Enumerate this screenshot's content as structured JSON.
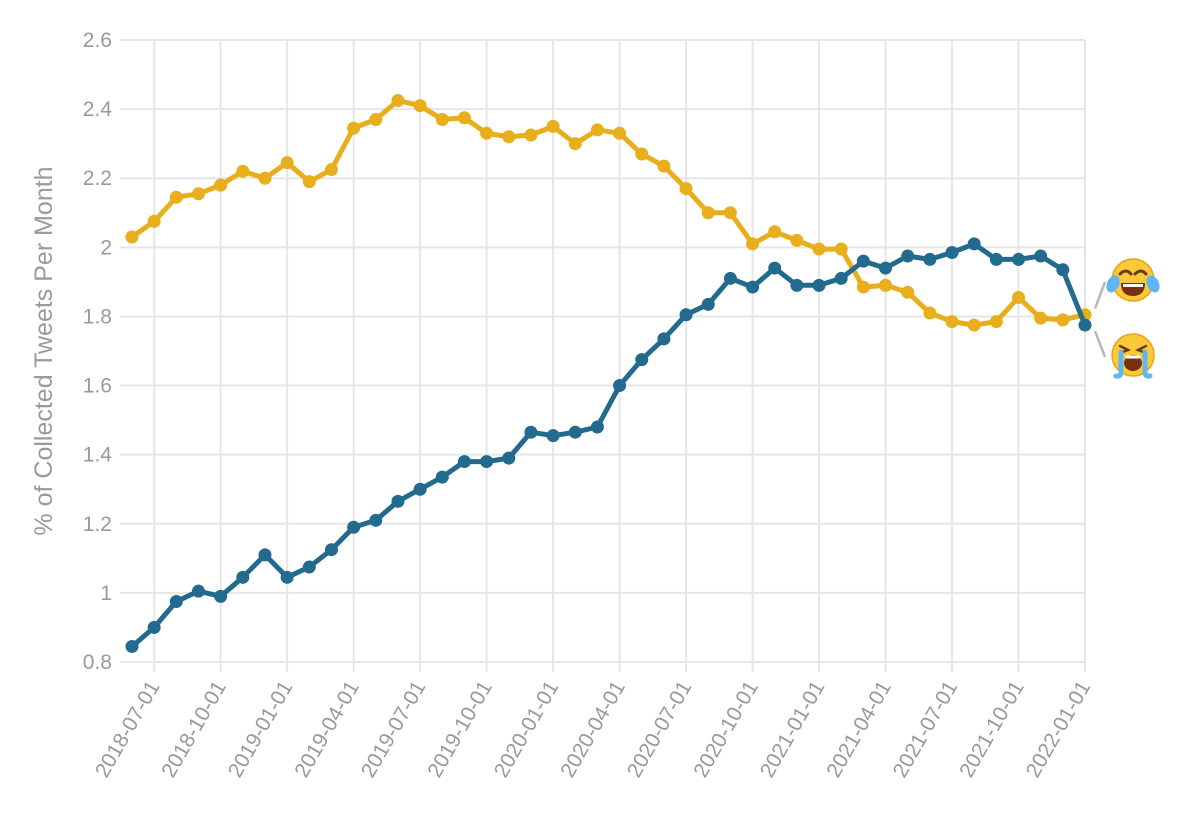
{
  "chart_data": {
    "type": "line",
    "ylabel": "% of Collected Tweets Per Month",
    "xlabel": "",
    "ylim": [
      0.8,
      2.6
    ],
    "yticks": [
      0.8,
      1.0,
      1.2,
      1.4,
      1.6,
      1.8,
      2.0,
      2.2,
      2.4,
      2.6
    ],
    "ytick_labels": [
      "0.8",
      "1",
      "1.2",
      "1.4",
      "1.6",
      "1.8",
      "2",
      "2.2",
      "2.4",
      "2.6"
    ],
    "xtick_labels": [
      "2018-07-01",
      "2018-10-01",
      "2019-01-01",
      "2019-04-01",
      "2019-07-01",
      "2019-10-01",
      "2020-01-01",
      "2020-04-01",
      "2020-07-01",
      "2020-10-01",
      "2021-01-01",
      "2021-04-01",
      "2021-07-01",
      "2021-10-01",
      "2022-01-01"
    ],
    "grid": true,
    "legend": "none",
    "x": [
      "2018-06",
      "2018-07",
      "2018-08",
      "2018-09",
      "2018-10",
      "2018-11",
      "2018-12",
      "2019-01",
      "2019-02",
      "2019-03",
      "2019-04",
      "2019-05",
      "2019-06",
      "2019-07",
      "2019-08",
      "2019-09",
      "2019-10",
      "2019-11",
      "2019-12",
      "2020-01",
      "2020-02",
      "2020-03",
      "2020-04",
      "2020-05",
      "2020-06",
      "2020-07",
      "2020-08",
      "2020-09",
      "2020-10",
      "2020-11",
      "2020-12",
      "2021-01",
      "2021-02",
      "2021-03",
      "2021-04",
      "2021-05",
      "2021-06",
      "2021-07",
      "2021-08",
      "2021-09",
      "2021-10",
      "2021-11",
      "2021-12",
      "2022-01"
    ],
    "series": [
      {
        "color": "#e8ae1b",
        "end_marker": "face-with-tears-of-joy-emoji",
        "values": [
          2.03,
          2.075,
          2.145,
          2.155,
          2.18,
          2.22,
          2.2,
          2.245,
          2.19,
          2.225,
          2.345,
          2.37,
          2.425,
          2.41,
          2.37,
          2.375,
          2.33,
          2.32,
          2.325,
          2.35,
          2.3,
          2.34,
          2.33,
          2.27,
          2.235,
          2.17,
          2.1,
          2.1,
          2.01,
          2.045,
          2.02,
          1.995,
          1.995,
          1.885,
          1.89,
          1.87,
          1.81,
          1.785,
          1.775,
          1.785,
          1.855,
          1.795,
          1.79,
          1.805
        ]
      },
      {
        "color": "#236a8f",
        "end_marker": "loudly-crying-face-emoji",
        "values": [
          0.845,
          0.9,
          0.975,
          1.005,
          0.99,
          1.045,
          1.11,
          1.045,
          1.075,
          1.125,
          1.19,
          1.21,
          1.265,
          1.3,
          1.335,
          1.38,
          1.38,
          1.39,
          1.465,
          1.455,
          1.465,
          1.48,
          1.6,
          1.675,
          1.735,
          1.805,
          1.835,
          1.91,
          1.885,
          1.94,
          1.89,
          1.89,
          1.91,
          1.96,
          1.94,
          1.975,
          1.965,
          1.985,
          2.01,
          1.965,
          1.965,
          1.975,
          1.935,
          1.775
        ]
      }
    ]
  }
}
